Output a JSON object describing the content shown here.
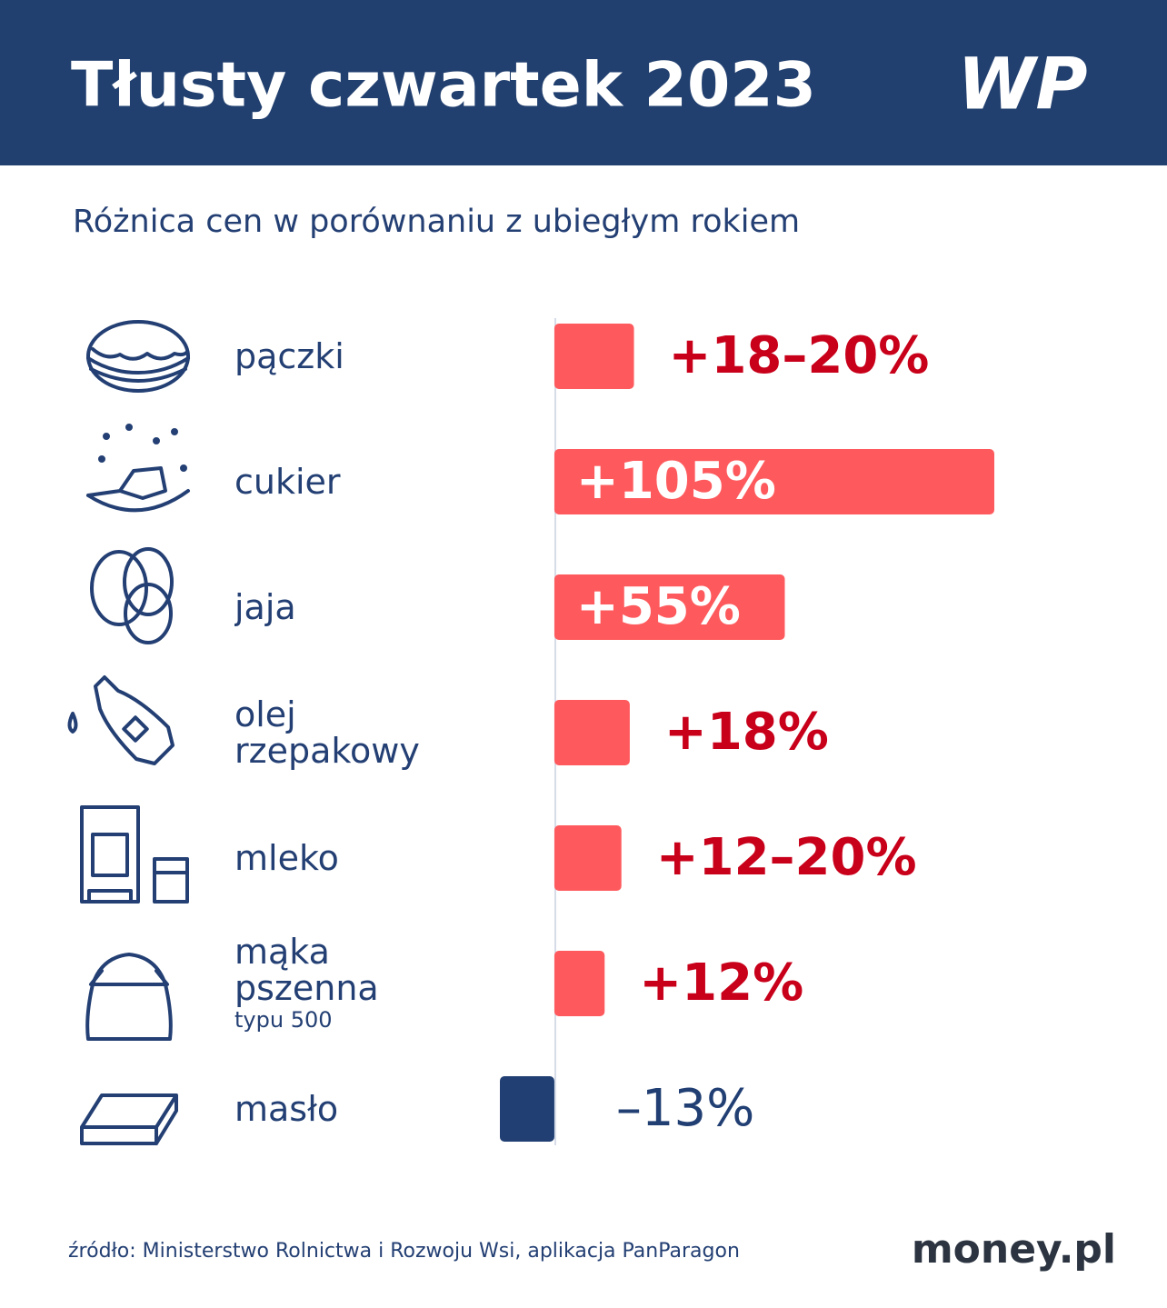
{
  "chart_data": {
    "type": "bar",
    "orientation": "horizontal",
    "title": "Tłusty czwartek 2023",
    "brand": "WP",
    "subtitle": "Różnica cen w porównaniu z ubiegłym rokiem",
    "categories": [
      "pączki",
      "cukier",
      "jaja",
      "olej rzepakowy",
      "mleko",
      "mąka pszenna",
      "masło"
    ],
    "sublabels": [
      null,
      null,
      null,
      null,
      null,
      "typu 500",
      null
    ],
    "values": [
      19,
      105,
      55,
      18,
      16,
      12,
      -13
    ],
    "value_labels": [
      "+18–20%",
      "+105%",
      "+55%",
      "+18%",
      "+12–20%",
      "+12%",
      "–13%"
    ],
    "color": "#fe5a5d",
    "negative_color": "#213f73",
    "xlim": [
      -13,
      105
    ],
    "source": "źródło: Ministerstwo Rolnictwa i Rozwoju Wsi, aplikacja PanParagon",
    "footer_brand": "money.pl"
  }
}
